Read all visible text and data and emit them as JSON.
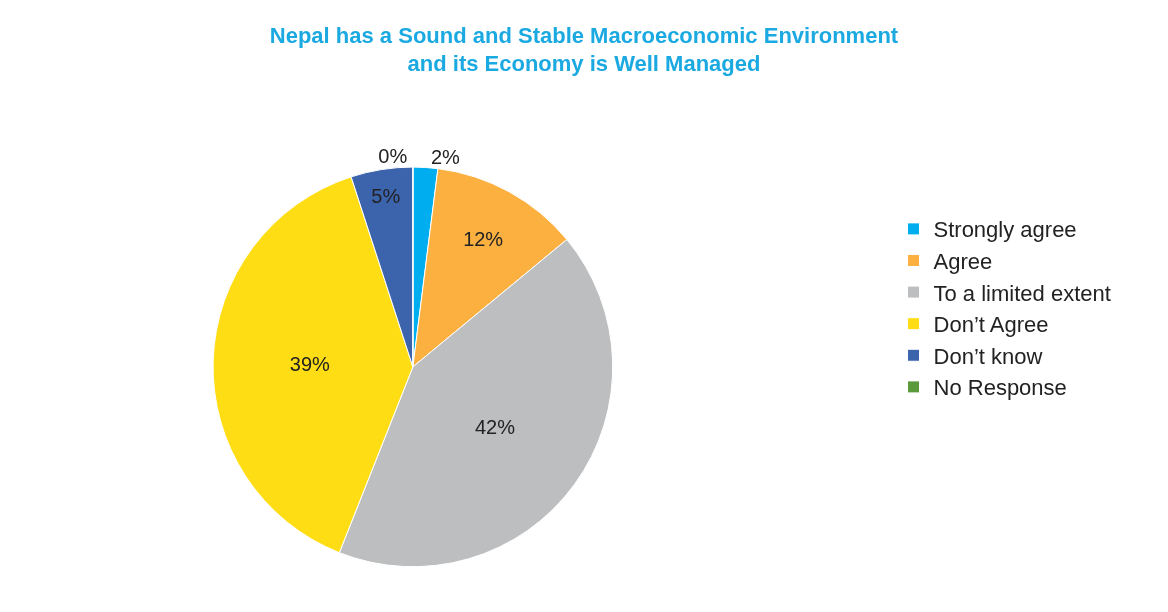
{
  "chart_data": {
    "type": "pie",
    "title": "Nepal has a Sound and Stable Macroeconomic Environment\nand its Economy is Well Managed",
    "categories": [
      "Strongly agree",
      "Agree",
      "To a limited extent",
      "Don’t Agree",
      "Don’t know",
      "No Response"
    ],
    "values": [
      2,
      12,
      42,
      39,
      5,
      0
    ],
    "value_labels": [
      "2%",
      "12%",
      "42%",
      "39%",
      "5%",
      "0%"
    ],
    "colors": [
      "#00aeef",
      "#fbb040",
      "#bcbec0",
      "#ffdd15",
      "#3c64ad",
      "#5b9a3b"
    ],
    "legend": "right"
  }
}
